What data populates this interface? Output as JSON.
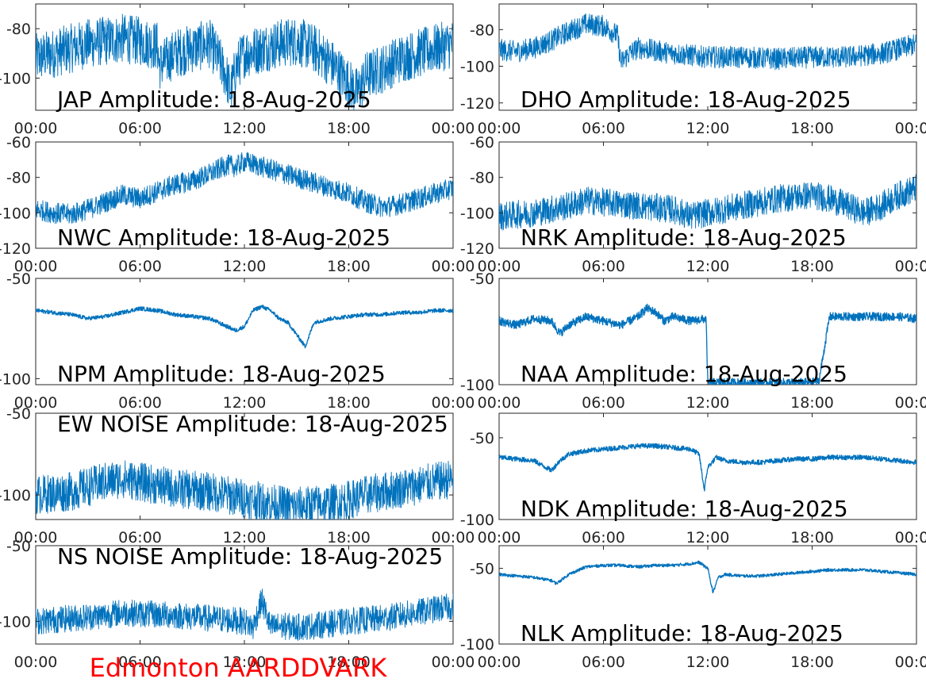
{
  "footer_label": "Edmonton AARDDVARK",
  "colors": {
    "series": "#0072BD",
    "footer": "#FF0000",
    "axis": "#262626"
  },
  "chart_data": [
    {
      "type": "line",
      "title": "JAP Amplitude: 18-Aug-2025",
      "x_tick_labels": [
        "00:00",
        "06:00",
        "12:00",
        "18:00",
        "00:00"
      ],
      "xlim_hours": [
        0,
        24
      ],
      "ylim": [
        -113,
        -70
      ],
      "y_ticks": [
        -80,
        -100
      ],
      "y_tick_labels": [
        "-80",
        "-100"
      ],
      "grid": false,
      "series": [
        {
          "x_hours": [
            0,
            1,
            2,
            3,
            4,
            5,
            6,
            7,
            7.1,
            7.5,
            8,
            9,
            10,
            10.5,
            11,
            11.2,
            11.5,
            12,
            13,
            14,
            15,
            16,
            17,
            18,
            18.5,
            19,
            20,
            21,
            22,
            23,
            24
          ],
          "values": [
            -92,
            -90,
            -88,
            -86,
            -85,
            -84,
            -85,
            -87,
            -95,
            -93,
            -90,
            -88,
            -86,
            -92,
            -100,
            -106,
            -96,
            -90,
            -88,
            -86,
            -85,
            -88,
            -94,
            -102,
            -106,
            -99,
            -96,
            -92,
            -90,
            -88,
            -86
          ],
          "noise": 10
        }
      ]
    },
    {
      "type": "line",
      "title": "DHO Amplitude: 18-Aug-2025",
      "x_tick_labels": [
        "00:00",
        "06:00",
        "12:00",
        "18:00",
        "00:00"
      ],
      "xlim_hours": [
        0,
        24
      ],
      "ylim": [
        -124,
        -66
      ],
      "y_ticks": [
        -80,
        -100,
        -120
      ],
      "y_tick_labels": [
        "-80",
        "-100",
        "-120"
      ],
      "grid": false,
      "series": [
        {
          "x_hours": [
            0,
            1,
            2,
            3,
            4,
            5,
            6,
            6.8,
            7,
            7.5,
            8,
            10,
            12,
            14,
            16,
            18,
            20,
            22,
            24
          ],
          "values": [
            -91,
            -92,
            -90,
            -86,
            -81,
            -77,
            -78,
            -83,
            -98,
            -93,
            -90,
            -93,
            -95,
            -95,
            -96,
            -95,
            -95,
            -93,
            -88
          ],
          "noise": 6
        }
      ]
    },
    {
      "type": "line",
      "title": "NWC Amplitude: 18-Aug-2025",
      "x_tick_labels": [
        "00:00",
        "06:00",
        "12:00",
        "18:00",
        "00:00"
      ],
      "xlim_hours": [
        0,
        24
      ],
      "ylim": [
        -120,
        -60
      ],
      "y_ticks": [
        -60,
        -80,
        -100,
        -120
      ],
      "y_tick_labels": [
        "-60",
        "-80",
        "-100",
        "-120"
      ],
      "grid": false,
      "series": [
        {
          "x_hours": [
            0,
            1,
            2,
            3,
            4,
            5,
            6,
            7,
            8,
            9,
            10,
            11,
            11.5,
            12,
            13,
            14,
            15,
            16,
            17,
            18,
            19,
            20,
            21,
            22,
            23,
            24
          ],
          "values": [
            -98,
            -100,
            -101,
            -98,
            -94,
            -90,
            -92,
            -88,
            -84,
            -82,
            -78,
            -73,
            -74,
            -71,
            -74,
            -77,
            -80,
            -83,
            -86,
            -89,
            -94,
            -97,
            -95,
            -92,
            -89,
            -86
          ],
          "noise": 6
        }
      ]
    },
    {
      "type": "line",
      "title": "NRK Amplitude: 18-Aug-2025",
      "x_tick_labels": [
        "00:00",
        "06:00",
        "12:00",
        "18:00",
        "00:00"
      ],
      "xlim_hours": [
        0,
        24
      ],
      "ylim": [
        -120,
        -60
      ],
      "y_ticks": [
        -60,
        -80,
        -100,
        -120
      ],
      "y_tick_labels": [
        "-60",
        "-80",
        "-100",
        "-120"
      ],
      "grid": false,
      "series": [
        {
          "x_hours": [
            0,
            2,
            4,
            5,
            6,
            8,
            10,
            11,
            12,
            13,
            14,
            15,
            16,
            17,
            18,
            19,
            20,
            21,
            22,
            23,
            24
          ],
          "values": [
            -102,
            -100,
            -96,
            -93,
            -94,
            -96,
            -98,
            -102,
            -100,
            -98,
            -96,
            -94,
            -92,
            -91,
            -90,
            -92,
            -96,
            -100,
            -96,
            -90,
            -86
          ],
          "noise": 8
        }
      ]
    },
    {
      "type": "line",
      "title": "NPM Amplitude: 18-Aug-2025",
      "x_tick_labels": [
        "00:00",
        "06:00",
        "12:00",
        "18:00",
        "00:00"
      ],
      "xlim_hours": [
        0,
        24
      ],
      "ylim": [
        -103,
        -50
      ],
      "y_ticks": [
        -50,
        -100
      ],
      "y_tick_labels": [
        "-50",
        "-100"
      ],
      "grid": false,
      "series": [
        {
          "x_hours": [
            0,
            1,
            2,
            3,
            4,
            5,
            6,
            7,
            8,
            9,
            10,
            11,
            11.5,
            12,
            12.5,
            13,
            13.5,
            14,
            14.5,
            15,
            15.5,
            16,
            17,
            18,
            19,
            20,
            21,
            22,
            23,
            24
          ],
          "values": [
            -66,
            -67,
            -68,
            -70,
            -69,
            -67,
            -65,
            -66,
            -68,
            -69,
            -70,
            -74,
            -76,
            -74,
            -66,
            -64,
            -66,
            -70,
            -72,
            -78,
            -84,
            -72,
            -70,
            -69,
            -68,
            -68,
            -67,
            -67,
            -66,
            -66
          ],
          "noise": 1
        }
      ]
    },
    {
      "type": "line",
      "title": "NAA Amplitude: 18-Aug-2025",
      "x_tick_labels": [
        "00:00",
        "06:00",
        "12:00",
        "18:00",
        "00:00"
      ],
      "xlim_hours": [
        0,
        24
      ],
      "ylim": [
        -100,
        -50
      ],
      "y_ticks": [
        -50,
        -100
      ],
      "y_tick_labels": [
        "-50",
        "-100"
      ],
      "grid": false,
      "series": [
        {
          "x_hours": [
            0,
            1,
            2,
            3,
            3.5,
            4,
            5,
            6,
            7,
            8,
            8.5,
            9,
            9.5,
            10,
            11,
            11.9,
            12,
            13,
            14,
            15,
            16,
            17,
            18,
            18.4,
            19,
            20,
            21,
            22,
            23,
            24
          ],
          "values": [
            -70,
            -72,
            -69,
            -70,
            -76,
            -72,
            -68,
            -70,
            -72,
            -68,
            -64,
            -66,
            -70,
            -68,
            -70,
            -69,
            -99,
            -99,
            -99,
            -99,
            -99,
            -99,
            -99,
            -98,
            -68,
            -68,
            -68,
            -68,
            -68,
            -69
          ],
          "noise": 2
        }
      ]
    },
    {
      "type": "line",
      "title": "EW NOISE Amplitude: 18-Aug-2025",
      "x_tick_labels": [
        "00:00",
        "06:00",
        "12:00",
        "18:00",
        "00:00"
      ],
      "xlim_hours": [
        0,
        24
      ],
      "ylim": [
        -115,
        -50
      ],
      "y_ticks": [
        -50,
        -100
      ],
      "y_tick_labels": [
        "-50",
        "-100"
      ],
      "grid": false,
      "series": [
        {
          "x_hours": [
            0,
            2,
            4,
            5,
            6,
            8,
            10,
            12,
            13,
            14,
            15,
            16,
            17,
            18,
            19,
            20,
            21,
            22,
            23,
            24
          ],
          "values": [
            -100,
            -98,
            -92,
            -90,
            -92,
            -96,
            -98,
            -102,
            -104,
            -106,
            -107,
            -106,
            -105,
            -103,
            -100,
            -98,
            -96,
            -94,
            -92,
            -90
          ],
          "noise": 12
        }
      ]
    },
    {
      "type": "line",
      "title": "NDK Amplitude: 18-Aug-2025",
      "x_tick_labels": [
        "00:00",
        "06:00",
        "12:00",
        "18:00",
        "00:00"
      ],
      "xlim_hours": [
        0,
        24
      ],
      "ylim": [
        -100,
        -35
      ],
      "y_ticks": [
        -50,
        -100
      ],
      "y_tick_labels": [
        "-50",
        "-100"
      ],
      "grid": false,
      "series": [
        {
          "x_hours": [
            0,
            1,
            2,
            2.5,
            3,
            3.5,
            4,
            5,
            6,
            7,
            8,
            9,
            10,
            11,
            11.5,
            11.8,
            12,
            12.5,
            13,
            14,
            15,
            16,
            17,
            18,
            19,
            20,
            21,
            22,
            23,
            24
          ],
          "values": [
            -62,
            -63,
            -64,
            -67,
            -70,
            -64,
            -60,
            -58,
            -57,
            -56,
            -55,
            -55,
            -56,
            -57,
            -60,
            -82,
            -68,
            -62,
            -64,
            -65,
            -65,
            -64,
            -63,
            -63,
            -62,
            -62,
            -62,
            -63,
            -64,
            -65
          ],
          "noise": 1.5
        }
      ]
    },
    {
      "type": "line",
      "title": "NS NOISE Amplitude: 18-Aug-2025",
      "x_tick_labels": [
        "00:00",
        "06:00",
        "12:00",
        "18:00",
        "00:00"
      ],
      "xlim_hours": [
        0,
        24
      ],
      "ylim": [
        -115,
        -50
      ],
      "y_ticks": [
        -50,
        -100
      ],
      "y_tick_labels": [
        "-50",
        "-100"
      ],
      "grid": false,
      "series": [
        {
          "x_hours": [
            0,
            2,
            4,
            5,
            6,
            8,
            10,
            12,
            12.5,
            13,
            13.5,
            14,
            15,
            16,
            18,
            20,
            22,
            24
          ],
          "values": [
            -100,
            -98,
            -96,
            -94,
            -95,
            -96,
            -98,
            -100,
            -104,
            -86,
            -104,
            -103,
            -104,
            -103,
            -100,
            -98,
            -94,
            -90
          ],
          "noise": 9
        }
      ]
    },
    {
      "type": "line",
      "title": "NLK Amplitude: 18-Aug-2025",
      "x_tick_labels": [
        "00:00",
        "06:00",
        "12:00",
        "18:00",
        "00:00"
      ],
      "xlim_hours": [
        0,
        24
      ],
      "ylim": [
        -100,
        -35
      ],
      "y_ticks": [
        -50,
        -100
      ],
      "y_tick_labels": [
        "-50",
        "-100"
      ],
      "grid": false,
      "series": [
        {
          "x_hours": [
            0,
            1,
            2,
            3,
            3.3,
            4,
            5,
            6,
            7,
            8,
            9,
            10,
            11,
            11.5,
            12,
            12.3,
            12.6,
            13,
            14,
            15,
            16,
            17,
            18,
            19,
            20,
            21,
            22,
            23,
            24
          ],
          "values": [
            -54,
            -55,
            -56,
            -58,
            -60,
            -54,
            -49,
            -48,
            -48,
            -49,
            -48,
            -48,
            -47,
            -46,
            -50,
            -66,
            -56,
            -54,
            -55,
            -55,
            -54,
            -53,
            -52,
            -51,
            -51,
            -51,
            -52,
            -53,
            -54
          ],
          "noise": 1
        }
      ]
    }
  ]
}
